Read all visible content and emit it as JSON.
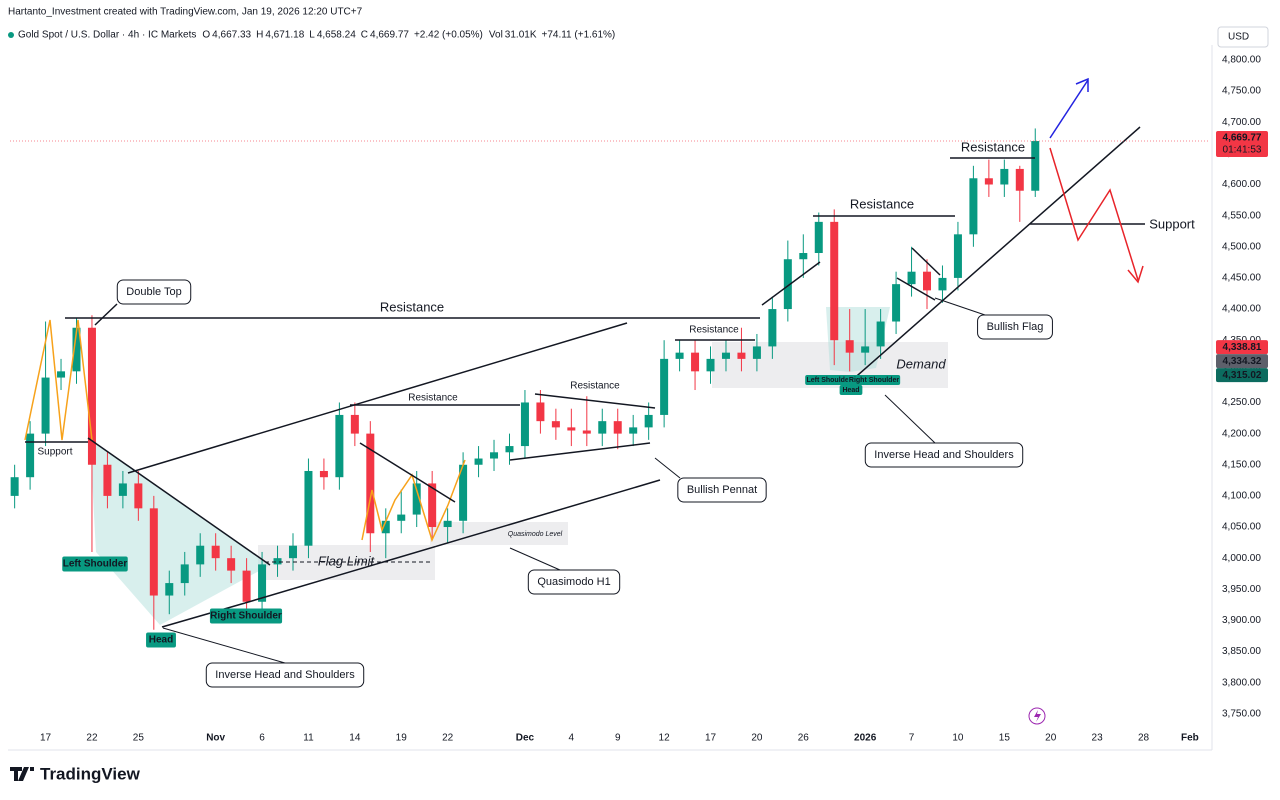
{
  "header": {
    "credit": "Hartanto_Investment created with TradingView.com, Jan 19, 2026 12:20 UTC+7",
    "symbol": "Gold Spot / U.S. Dollar · 4h · IC Markets",
    "ohlc": [
      {
        "key": "O",
        "value": "4,667.33"
      },
      {
        "key": "H",
        "value": "4,671.18"
      },
      {
        "key": "L",
        "value": "4,658.24"
      },
      {
        "key": "C",
        "value": "4,669.77"
      }
    ],
    "change": "+2.42 (+0.05%)",
    "vol_key": "Vol",
    "vol": "31.01K",
    "vol_change": "+74.11 (+1.61%)"
  },
  "footer": {
    "logo": "TradingView"
  },
  "chart_data": {
    "type": "candlestick",
    "currency": "USD",
    "grid": true,
    "up_color": "#089981",
    "down_color": "#f23645",
    "open": [
      4100,
      4130,
      4200,
      4290,
      4300,
      4370,
      4150,
      4100,
      4120,
      4080,
      3940,
      3960,
      3990,
      4020,
      4000,
      3980,
      3930,
      3990,
      4000,
      4020,
      4140,
      4130,
      4230,
      4200,
      4040,
      4060,
      4070,
      4120,
      4050,
      4060,
      4150,
      4160,
      4170,
      4180,
      4250,
      4220,
      4210,
      4205,
      4200,
      4220,
      4200,
      4210,
      4230,
      4320,
      4330,
      4300,
      4320,
      4330,
      4320,
      4340,
      4400,
      4480,
      4490,
      4540,
      4350,
      4330,
      4340,
      4380,
      4440,
      4460,
      4430,
      4450,
      4520,
      4610,
      4600,
      4625,
      4590
    ],
    "high": [
      4150,
      4220,
      4380,
      4320,
      4385,
      4390,
      4170,
      4140,
      4140,
      4100,
      3980,
      4010,
      4040,
      4040,
      4020,
      4000,
      4010,
      4020,
      4040,
      4160,
      4160,
      4250,
      4250,
      4220,
      4080,
      4110,
      4140,
      4140,
      4080,
      4170,
      4180,
      4190,
      4200,
      4270,
      4270,
      4240,
      4240,
      4260,
      4240,
      4240,
      4230,
      4250,
      4350,
      4350,
      4350,
      4340,
      4350,
      4370,
      4360,
      4420,
      4510,
      4520,
      4555,
      4560,
      4400,
      4400,
      4400,
      4460,
      4500,
      4480,
      4470,
      4540,
      4630,
      4640,
      4640,
      4630,
      4690
    ],
    "low": [
      4080,
      4110,
      4180,
      4270,
      4280,
      4010,
      4080,
      4080,
      4060,
      3885,
      3910,
      3940,
      3970,
      3980,
      3960,
      3915,
      3910,
      3970,
      3980,
      4000,
      4110,
      4110,
      4180,
      4010,
      4000,
      4040,
      4050,
      4030,
      4025,
      4040,
      4130,
      4140,
      4150,
      4160,
      4200,
      4190,
      4180,
      4180,
      4180,
      4175,
      4180,
      4190,
      4210,
      4300,
      4270,
      4280,
      4300,
      4300,
      4300,
      4320,
      4380,
      4450,
      4470,
      4310,
      4300,
      4310,
      4320,
      4360,
      4420,
      4400,
      4410,
      4430,
      4500,
      4580,
      4580,
      4540,
      4580
    ],
    "close": [
      4130,
      4200,
      4290,
      4300,
      4370,
      4150,
      4100,
      4120,
      4080,
      3940,
      3960,
      3990,
      4020,
      4000,
      3980,
      3930,
      3990,
      4000,
      4020,
      4140,
      4130,
      4230,
      4200,
      4040,
      4060,
      4070,
      4120,
      4050,
      4060,
      4150,
      4160,
      4170,
      4180,
      4250,
      4220,
      4210,
      4205,
      4200,
      4220,
      4200,
      4210,
      4230,
      4320,
      4330,
      4300,
      4320,
      4330,
      4320,
      4340,
      4400,
      4480,
      4490,
      4540,
      4350,
      4330,
      4340,
      4380,
      4440,
      4460,
      4430,
      4450,
      4520,
      4610,
      4600,
      4625,
      4590,
      4669.77
    ],
    "ylim": [
      3700,
      4824
    ],
    "yticks": [
      {
        "value": 3750,
        "label": "3,750.00"
      },
      {
        "value": 3800,
        "label": "3,800.00"
      },
      {
        "value": 3850,
        "label": "3,850.00"
      },
      {
        "value": 3900,
        "label": "3,900.00"
      },
      {
        "value": 3950,
        "label": "3,950.00"
      },
      {
        "value": 4000,
        "label": "4,000.00"
      },
      {
        "value": 4050,
        "label": "4,050.00"
      },
      {
        "value": 4100,
        "label": "4,100.00"
      },
      {
        "value": 4150,
        "label": "4,150.00"
      },
      {
        "value": 4200,
        "label": "4,200.00"
      },
      {
        "value": 4250,
        "label": "4,250.00"
      },
      {
        "value": 4300,
        "label": "4,300.00"
      },
      {
        "value": 4350,
        "label": "4,350.00"
      },
      {
        "value": 4400,
        "label": "4,400.00"
      },
      {
        "value": 4450,
        "label": "4,450.00"
      },
      {
        "value": 4500,
        "label": "4,500.00"
      },
      {
        "value": 4550,
        "label": "4,550.00"
      },
      {
        "value": 4600,
        "label": "4,600.00"
      },
      {
        "value": 4650,
        "label": "4,650.00"
      },
      {
        "value": 4700,
        "label": "4,700.00"
      },
      {
        "value": 4750,
        "label": "4,750.00"
      },
      {
        "value": 4800,
        "label": "4,800.00"
      }
    ],
    "xlim": [
      -0.3,
      77.3
    ],
    "xticks": [
      {
        "value": 2,
        "label": "17"
      },
      {
        "value": 5,
        "label": "22"
      },
      {
        "value": 8,
        "label": "25"
      },
      {
        "value": 13,
        "label": "Nov"
      },
      {
        "value": 16,
        "label": "6"
      },
      {
        "value": 19,
        "label": "11"
      },
      {
        "value": 22,
        "label": "14"
      },
      {
        "value": 25,
        "label": "19"
      },
      {
        "value": 28,
        "label": "22"
      },
      {
        "value": 33,
        "label": "Dec"
      },
      {
        "value": 36,
        "label": "4"
      },
      {
        "value": 39,
        "label": "9"
      },
      {
        "value": 42,
        "label": "12"
      },
      {
        "value": 45,
        "label": "17"
      },
      {
        "value": 48,
        "label": "20"
      },
      {
        "value": 51,
        "label": "26"
      },
      {
        "value": 55,
        "label": "2026"
      },
      {
        "value": 58,
        "label": "7"
      },
      {
        "value": 61,
        "label": "10"
      },
      {
        "value": 64,
        "label": "15"
      },
      {
        "value": 67,
        "label": "20"
      },
      {
        "value": 70,
        "label": "23"
      },
      {
        "value": 73,
        "label": "28"
      },
      {
        "value": 76,
        "label": "Feb"
      }
    ],
    "last_price": {
      "value": 4669.77,
      "label": "4,669.77",
      "color": "#f23645",
      "countdown": "01:41:53"
    },
    "price_labels": [
      {
        "value": 4338.81,
        "label": "4,338.81",
        "color": "#f23645"
      },
      {
        "value": 4334.32,
        "label": "4,334.32",
        "color": "#5d606b"
      },
      {
        "value": 4315.02,
        "label": "4,315.02",
        "color": "#0c6b5f"
      }
    ],
    "annotations": [
      "Double Top",
      "Resistance",
      "Support",
      "Left Shoulder",
      "Head",
      "Right Shoulder",
      "Inverse Head and Shoulders",
      "Flag Limit",
      "Resistance",
      "Resistance",
      "Quasimodo Level",
      "Quasimodo H1",
      "Resistance",
      "Bullish Pennat",
      "Resistance",
      "Demand",
      "Left Shoulder",
      "Head",
      "Right Shoulder",
      "Inverse Head and Shoulders",
      "Bullish Flag",
      "Resistance",
      "Support"
    ]
  }
}
